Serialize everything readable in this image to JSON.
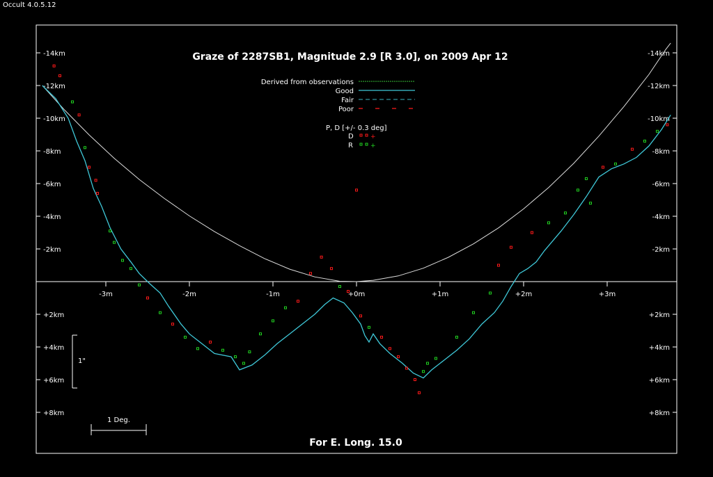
{
  "app_title": "Occult 4.0.5.12",
  "colors": {
    "background": "#000000",
    "frame": "#ffffff",
    "limb_profile": "#3fc8d8",
    "derived": "#2e9b2e",
    "fair": "#2f8f9a",
    "poor": "#ff1a1a",
    "disappear": "#ff1a1a",
    "reappear": "#21d321",
    "parabola": "#dddddd"
  },
  "chart_data": {
    "type": "scatter",
    "title": "Graze of  2287SB1,  Magnitude 2.9 [R 3.0],  on 2009 Apr 12",
    "footer": "For E. Long. 15.0",
    "xlim": [
      -3.76,
      3.76
    ],
    "ylim": [
      -14.6,
      10.4
    ],
    "x_ticks": [
      {
        "v": -3,
        "label": "-3m"
      },
      {
        "v": -2,
        "label": "-2m"
      },
      {
        "v": -1,
        "label": "-1m"
      },
      {
        "v": 0,
        "label": "+0m"
      },
      {
        "v": 1,
        "label": "+1m"
      },
      {
        "v": 2,
        "label": "+2m"
      },
      {
        "v": 3,
        "label": "+3m"
      }
    ],
    "y_ticks": [
      {
        "v": -14,
        "label": "-14km"
      },
      {
        "v": -12,
        "label": "-12km"
      },
      {
        "v": -10,
        "label": "-10km"
      },
      {
        "v": -8,
        "label": "-8km"
      },
      {
        "v": -6,
        "label": "-6km"
      },
      {
        "v": -4,
        "label": "-4km"
      },
      {
        "v": -2,
        "label": "-2km"
      },
      {
        "v": 2,
        "label": "+2km"
      },
      {
        "v": 4,
        "label": "+4km"
      },
      {
        "v": 6,
        "label": "+6km"
      },
      {
        "v": 8,
        "label": "+8km"
      }
    ],
    "legend": {
      "items": [
        {
          "label": "Derived from observations",
          "style": "derived"
        },
        {
          "label": "Good",
          "style": "good"
        },
        {
          "label": "Fair",
          "style": "fair"
        },
        {
          "label": "Poor",
          "style": "poor"
        }
      ],
      "event_header": "P, D [+/- 0.3 deg]",
      "events": [
        {
          "label": "D",
          "color": "#ff1a1a"
        },
        {
          "label": "R",
          "color": "#21d321"
        }
      ]
    },
    "scale_bars": {
      "vertical_label": "1\"",
      "horizontal_label": "1 Deg."
    },
    "series": [
      {
        "kind": "parabola",
        "points": [
          [
            -3.76,
            -12.0
          ],
          [
            -3.5,
            -10.53
          ],
          [
            -3.2,
            -8.98
          ],
          [
            -2.9,
            -7.55
          ],
          [
            -2.6,
            -6.25
          ],
          [
            -2.3,
            -5.09
          ],
          [
            -2.0,
            -4.02
          ],
          [
            -1.7,
            -3.06
          ],
          [
            -1.4,
            -2.2
          ],
          [
            -1.1,
            -1.41
          ],
          [
            -0.8,
            -0.76
          ],
          [
            -0.5,
            -0.29
          ],
          [
            -0.2,
            -0.02
          ],
          [
            0.0,
            0.0
          ],
          [
            0.2,
            -0.08
          ],
          [
            0.5,
            -0.35
          ],
          [
            0.8,
            -0.82
          ],
          [
            1.1,
            -1.49
          ],
          [
            1.4,
            -2.31
          ],
          [
            1.7,
            -3.29
          ],
          [
            2.0,
            -4.45
          ],
          [
            2.3,
            -5.76
          ],
          [
            2.6,
            -7.24
          ],
          [
            2.9,
            -8.9
          ],
          [
            3.2,
            -10.71
          ],
          [
            3.5,
            -12.68
          ],
          [
            3.7,
            -14.2
          ],
          [
            3.76,
            -14.6
          ]
        ]
      },
      {
        "kind": "profile",
        "points": [
          [
            -3.76,
            -12.0
          ],
          [
            -3.6,
            -11.2
          ],
          [
            -3.45,
            -10.0
          ],
          [
            -3.35,
            -8.6
          ],
          [
            -3.25,
            -7.4
          ],
          [
            -3.15,
            -5.7
          ],
          [
            -3.05,
            -4.6
          ],
          [
            -2.95,
            -3.3
          ],
          [
            -2.82,
            -2.0
          ],
          [
            -2.7,
            -1.2
          ],
          [
            -2.6,
            -0.5
          ],
          [
            -2.48,
            0.1
          ],
          [
            -2.35,
            0.7
          ],
          [
            -2.25,
            1.5
          ],
          [
            -2.1,
            2.6
          ],
          [
            -2.0,
            3.2
          ],
          [
            -1.85,
            3.8
          ],
          [
            -1.7,
            4.4
          ],
          [
            -1.5,
            4.6
          ],
          [
            -1.4,
            5.4
          ],
          [
            -1.25,
            5.1
          ],
          [
            -1.1,
            4.5
          ],
          [
            -0.95,
            3.8
          ],
          [
            -0.8,
            3.2
          ],
          [
            -0.65,
            2.6
          ],
          [
            -0.5,
            2.0
          ],
          [
            -0.38,
            1.4
          ],
          [
            -0.28,
            1.0
          ],
          [
            -0.15,
            1.3
          ],
          [
            -0.05,
            1.9
          ],
          [
            0.05,
            2.6
          ],
          [
            0.1,
            3.3
          ],
          [
            0.15,
            3.7
          ],
          [
            0.2,
            3.2
          ],
          [
            0.28,
            3.8
          ],
          [
            0.4,
            4.4
          ],
          [
            0.55,
            5.0
          ],
          [
            0.68,
            5.6
          ],
          [
            0.8,
            5.9
          ],
          [
            0.9,
            5.4
          ],
          [
            1.0,
            5.0
          ],
          [
            1.1,
            4.6
          ],
          [
            1.2,
            4.2
          ],
          [
            1.35,
            3.5
          ],
          [
            1.5,
            2.6
          ],
          [
            1.65,
            1.9
          ],
          [
            1.75,
            1.2
          ],
          [
            1.85,
            0.3
          ],
          [
            1.95,
            -0.5
          ],
          [
            2.05,
            -0.8
          ],
          [
            2.15,
            -1.2
          ],
          [
            2.25,
            -1.9
          ],
          [
            2.45,
            -3.1
          ],
          [
            2.6,
            -4.1
          ],
          [
            2.75,
            -5.2
          ],
          [
            2.9,
            -6.4
          ],
          [
            3.05,
            -6.9
          ],
          [
            3.2,
            -7.2
          ],
          [
            3.35,
            -7.6
          ],
          [
            3.5,
            -8.3
          ],
          [
            3.65,
            -9.3
          ],
          [
            3.76,
            -10.2
          ]
        ]
      }
    ],
    "events_sample": [
      {
        "x": -3.62,
        "y": -13.2,
        "t": "D"
      },
      {
        "x": -3.55,
        "y": -12.6,
        "t": "D"
      },
      {
        "x": -3.4,
        "y": -11.0,
        "t": "R"
      },
      {
        "x": -3.32,
        "y": -10.2,
        "t": "D"
      },
      {
        "x": -3.25,
        "y": -8.2,
        "t": "R"
      },
      {
        "x": -3.2,
        "y": -7.0,
        "t": "D"
      },
      {
        "x": -3.12,
        "y": -6.2,
        "t": "D"
      },
      {
        "x": -3.1,
        "y": -5.4,
        "t": "D"
      },
      {
        "x": -2.95,
        "y": -3.1,
        "t": "R"
      },
      {
        "x": -2.9,
        "y": -2.4,
        "t": "R"
      },
      {
        "x": -2.8,
        "y": -1.3,
        "t": "R"
      },
      {
        "x": -2.7,
        "y": -0.8,
        "t": "R"
      },
      {
        "x": -2.6,
        "y": 0.2,
        "t": "R"
      },
      {
        "x": -2.5,
        "y": 1.0,
        "t": "D"
      },
      {
        "x": -2.35,
        "y": 1.9,
        "t": "R"
      },
      {
        "x": -2.2,
        "y": 2.6,
        "t": "D"
      },
      {
        "x": -2.05,
        "y": 3.4,
        "t": "R"
      },
      {
        "x": -1.9,
        "y": 4.1,
        "t": "R"
      },
      {
        "x": -1.75,
        "y": 3.7,
        "t": "D"
      },
      {
        "x": -1.6,
        "y": 4.2,
        "t": "R"
      },
      {
        "x": -1.45,
        "y": 4.6,
        "t": "R"
      },
      {
        "x": -1.35,
        "y": 5.0,
        "t": "R"
      },
      {
        "x": -1.28,
        "y": 4.3,
        "t": "R"
      },
      {
        "x": -1.15,
        "y": 3.2,
        "t": "R"
      },
      {
        "x": -1.0,
        "y": 2.4,
        "t": "R"
      },
      {
        "x": -0.85,
        "y": 1.6,
        "t": "R"
      },
      {
        "x": -0.7,
        "y": 1.2,
        "t": "D"
      },
      {
        "x": -0.55,
        "y": -0.5,
        "t": "D"
      },
      {
        "x": -0.42,
        "y": -1.5,
        "t": "D"
      },
      {
        "x": -0.3,
        "y": -0.8,
        "t": "D"
      },
      {
        "x": -0.2,
        "y": 0.3,
        "t": "R"
      },
      {
        "x": -0.1,
        "y": 0.6,
        "t": "D"
      },
      {
        "x": 0.0,
        "y": -5.6,
        "t": "D"
      },
      {
        "x": 0.05,
        "y": 2.1,
        "t": "D"
      },
      {
        "x": 0.15,
        "y": 2.8,
        "t": "R"
      },
      {
        "x": 0.3,
        "y": 3.4,
        "t": "D"
      },
      {
        "x": 0.4,
        "y": 4.1,
        "t": "D"
      },
      {
        "x": 0.5,
        "y": 4.6,
        "t": "D"
      },
      {
        "x": 0.6,
        "y": 5.3,
        "t": "D"
      },
      {
        "x": 0.7,
        "y": 6.0,
        "t": "D"
      },
      {
        "x": 0.75,
        "y": 6.8,
        "t": "D"
      },
      {
        "x": 0.8,
        "y": 5.5,
        "t": "R"
      },
      {
        "x": 0.85,
        "y": 5.0,
        "t": "R"
      },
      {
        "x": 0.95,
        "y": 4.7,
        "t": "R"
      },
      {
        "x": 1.2,
        "y": 3.4,
        "t": "R"
      },
      {
        "x": 1.4,
        "y": 1.9,
        "t": "R"
      },
      {
        "x": 1.6,
        "y": 0.7,
        "t": "R"
      },
      {
        "x": 1.7,
        "y": -1.0,
        "t": "D"
      },
      {
        "x": 1.85,
        "y": -2.1,
        "t": "D"
      },
      {
        "x": 2.1,
        "y": -3.0,
        "t": "D"
      },
      {
        "x": 2.3,
        "y": -3.6,
        "t": "R"
      },
      {
        "x": 2.5,
        "y": -4.2,
        "t": "R"
      },
      {
        "x": 2.65,
        "y": -5.6,
        "t": "R"
      },
      {
        "x": 2.75,
        "y": -6.3,
        "t": "R"
      },
      {
        "x": 2.8,
        "y": -4.8,
        "t": "R"
      },
      {
        "x": 2.95,
        "y": -7.0,
        "t": "D"
      },
      {
        "x": 3.1,
        "y": -7.2,
        "t": "R"
      },
      {
        "x": 3.3,
        "y": -8.1,
        "t": "D"
      },
      {
        "x": 3.45,
        "y": -8.6,
        "t": "R"
      },
      {
        "x": 3.6,
        "y": -9.2,
        "t": "R"
      },
      {
        "x": 3.72,
        "y": -9.6,
        "t": "D"
      }
    ]
  }
}
